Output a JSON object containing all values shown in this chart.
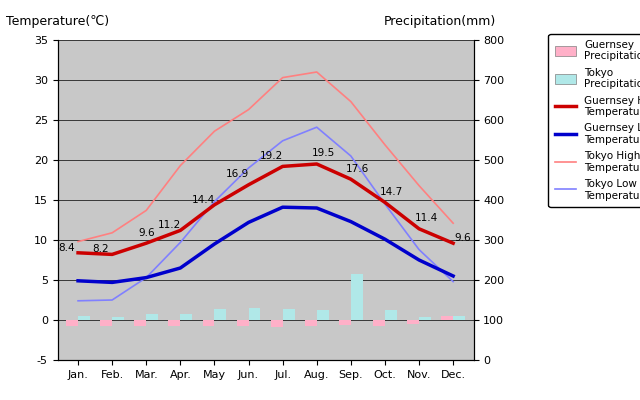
{
  "months": [
    "Jan.",
    "Feb.",
    "Mar.",
    "Apr.",
    "May",
    "Jun.",
    "Jul.",
    "Aug.",
    "Sep.",
    "Oct.",
    "Nov.",
    "Dec."
  ],
  "month_x": [
    0,
    1,
    2,
    3,
    4,
    5,
    6,
    7,
    8,
    9,
    10,
    11
  ],
  "guernsey_high": [
    8.4,
    8.2,
    9.6,
    11.2,
    14.4,
    16.9,
    19.2,
    19.5,
    17.6,
    14.7,
    11.4,
    9.6
  ],
  "guernsey_low": [
    4.9,
    4.7,
    5.3,
    6.5,
    9.5,
    12.2,
    14.1,
    14.0,
    12.3,
    10.1,
    7.5,
    5.5
  ],
  "tokyo_high": [
    9.8,
    10.9,
    13.7,
    19.3,
    23.6,
    26.3,
    30.3,
    31.0,
    27.3,
    21.9,
    16.8,
    12.1
  ],
  "tokyo_low": [
    2.4,
    2.5,
    5.3,
    9.7,
    14.8,
    19.0,
    22.4,
    24.1,
    20.5,
    14.5,
    8.8,
    4.8
  ],
  "guernsey_precip_temp": [
    -0.7,
    -0.8,
    -0.7,
    -0.8,
    -0.8,
    -0.8,
    -0.9,
    -0.7,
    -0.6,
    -0.8,
    -0.5,
    0.5
  ],
  "tokyo_precip_temp": [
    0.5,
    0.4,
    0.7,
    0.7,
    1.4,
    1.5,
    1.4,
    1.3,
    5.8,
    1.3,
    0.4,
    0.5
  ],
  "guernsey_high_color": "#cc0000",
  "guernsey_low_color": "#0000cc",
  "tokyo_high_color": "#ff8080",
  "tokyo_low_color": "#8080ff",
  "guernsey_precip_color": "#ffb0c8",
  "tokyo_precip_color": "#b0e8e8",
  "background_color": "#c8c8c8",
  "title_left": "Temperature(℃)",
  "title_right": "Precipitation(mm)",
  "temp_ylim": [
    -5,
    35
  ],
  "precip_ylim": [
    0,
    800
  ],
  "ann_gh": [
    8.4,
    8.2,
    9.6,
    11.2,
    14.4,
    16.9,
    19.2,
    19.5,
    17.6,
    14.7,
    11.4,
    9.6
  ]
}
